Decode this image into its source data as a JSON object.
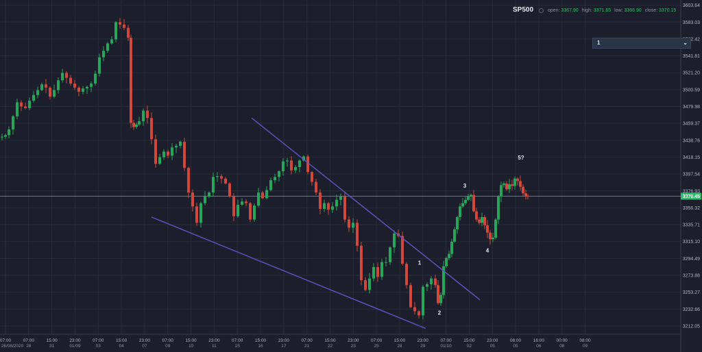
{
  "header": {
    "symbol": "SP500",
    "open_label": "open:",
    "open": "3367.90",
    "high_label": "high:",
    "high": "3371.65",
    "low_label": "low:",
    "low": "3366.90",
    "close_label": "close:",
    "close": "3370.15"
  },
  "selector": {
    "value": "1"
  },
  "colors": {
    "background": "#1c1f2b",
    "up": "#26a65b",
    "down": "#d2473c",
    "trendline": "#5b57c8",
    "price_line": "#26c06a"
  },
  "chart_data": {
    "type": "candlestick",
    "ylim": [
      3203,
      3606
    ],
    "y_ticks": [
      3603.64,
      3583.03,
      3562.42,
      3541.81,
      3521.2,
      3500.59,
      3479.98,
      3459.37,
      3438.76,
      3418.15,
      3397.54,
      3376.93,
      3356.32,
      3335.71,
      3315.1,
      3294.49,
      3273.88,
      3253.27,
      3232.66,
      3212.05
    ],
    "current_price": 3370.45,
    "current_price_label": "3370.45",
    "x_ticks": [
      {
        "t": "07:00",
        "d": "26/08/2020"
      },
      {
        "t": "07:00",
        "d": "28"
      },
      {
        "t": "15:00",
        "d": "31"
      },
      {
        "t": "23:00",
        "d": "01/09"
      },
      {
        "t": "07:00",
        "d": "03"
      },
      {
        "t": "15:00",
        "d": "04"
      },
      {
        "t": "23:00",
        "d": "07"
      },
      {
        "t": "07:00",
        "d": "09"
      },
      {
        "t": "15:00",
        "d": "10"
      },
      {
        "t": "23:00",
        "d": "11"
      },
      {
        "t": "07:00",
        "d": "15"
      },
      {
        "t": "15:00",
        "d": "16"
      },
      {
        "t": "23:00",
        "d": "17"
      },
      {
        "t": "07:00",
        "d": "21"
      },
      {
        "t": "15:00",
        "d": "22"
      },
      {
        "t": "23:00",
        "d": "23"
      },
      {
        "t": "07:00",
        "d": "25"
      },
      {
        "t": "15:00",
        "d": "28"
      },
      {
        "t": "23:00",
        "d": "29"
      },
      {
        "t": "07:00",
        "d": "01/10"
      },
      {
        "t": "15:00",
        "d": "02"
      },
      {
        "t": "23:00",
        "d": "05"
      },
      {
        "t": "08:00",
        "d": "05"
      },
      {
        "t": "16:00",
        "d": "06"
      },
      {
        "t": "00:00",
        "d": "08"
      },
      {
        "t": "08:00",
        "d": "09"
      }
    ],
    "close_path": [
      [
        0,
        3443
      ],
      [
        5,
        3445
      ],
      [
        10,
        3452
      ],
      [
        16,
        3468
      ],
      [
        22,
        3485
      ],
      [
        28,
        3480
      ],
      [
        34,
        3478
      ],
      [
        40,
        3487
      ],
      [
        46,
        3494
      ],
      [
        52,
        3500
      ],
      [
        58,
        3507
      ],
      [
        64,
        3503
      ],
      [
        70,
        3492
      ],
      [
        76,
        3500
      ],
      [
        82,
        3512
      ],
      [
        88,
        3521
      ],
      [
        94,
        3515
      ],
      [
        100,
        3508
      ],
      [
        106,
        3503
      ],
      [
        112,
        3498
      ],
      [
        118,
        3502
      ],
      [
        124,
        3504
      ],
      [
        130,
        3508
      ],
      [
        136,
        3520
      ],
      [
        142,
        3540
      ],
      [
        148,
        3548
      ],
      [
        154,
        3557
      ],
      [
        160,
        3562
      ],
      [
        166,
        3583
      ],
      [
        172,
        3580
      ],
      [
        178,
        3576
      ],
      [
        184,
        3564
      ],
      [
        188,
        3460
      ],
      [
        192,
        3455
      ],
      [
        196,
        3458
      ],
      [
        200,
        3462
      ],
      [
        206,
        3475
      ],
      [
        212,
        3466
      ],
      [
        218,
        3440
      ],
      [
        224,
        3410
      ],
      [
        230,
        3418
      ],
      [
        236,
        3425
      ],
      [
        242,
        3420
      ],
      [
        248,
        3430
      ],
      [
        254,
        3432
      ],
      [
        260,
        3437
      ],
      [
        266,
        3405
      ],
      [
        272,
        3375
      ],
      [
        278,
        3358
      ],
      [
        284,
        3338
      ],
      [
        290,
        3362
      ],
      [
        296,
        3370
      ],
      [
        302,
        3375
      ],
      [
        308,
        3394
      ],
      [
        314,
        3395
      ],
      [
        320,
        3392
      ],
      [
        326,
        3386
      ],
      [
        332,
        3370
      ],
      [
        338,
        3346
      ],
      [
        344,
        3360
      ],
      [
        350,
        3364
      ],
      [
        356,
        3362
      ],
      [
        362,
        3342
      ],
      [
        368,
        3359
      ],
      [
        374,
        3375
      ],
      [
        380,
        3368
      ],
      [
        386,
        3378
      ],
      [
        392,
        3390
      ],
      [
        398,
        3394
      ],
      [
        404,
        3401
      ],
      [
        410,
        3413
      ],
      [
        416,
        3414
      ],
      [
        422,
        3402
      ],
      [
        428,
        3406
      ],
      [
        434,
        3414
      ],
      [
        440,
        3419
      ],
      [
        446,
        3400
      ],
      [
        452,
        3388
      ],
      [
        458,
        3375
      ],
      [
        464,
        3355
      ],
      [
        470,
        3362
      ],
      [
        476,
        3354
      ],
      [
        482,
        3358
      ],
      [
        488,
        3366
      ],
      [
        494,
        3370
      ],
      [
        500,
        3342
      ],
      [
        506,
        3332
      ],
      [
        512,
        3338
      ],
      [
        518,
        3310
      ],
      [
        524,
        3268
      ],
      [
        530,
        3256
      ],
      [
        536,
        3270
      ],
      [
        542,
        3284
      ],
      [
        548,
        3272
      ],
      [
        554,
        3290
      ],
      [
        560,
        3290
      ],
      [
        566,
        3308
      ],
      [
        572,
        3325
      ],
      [
        578,
        3322
      ],
      [
        584,
        3288
      ],
      [
        590,
        3262
      ],
      [
        596,
        3235
      ],
      [
        602,
        3230
      ],
      [
        608,
        3225
      ],
      [
        614,
        3260
      ],
      [
        620,
        3263
      ],
      [
        626,
        3270
      ],
      [
        632,
        3262
      ],
      [
        636,
        3240
      ],
      [
        640,
        3250
      ],
      [
        644,
        3285
      ],
      [
        648,
        3295
      ],
      [
        652,
        3300
      ],
      [
        656,
        3315
      ],
      [
        660,
        3330
      ],
      [
        664,
        3345
      ],
      [
        668,
        3358
      ],
      [
        672,
        3362
      ],
      [
        676,
        3366
      ],
      [
        680,
        3370
      ],
      [
        684,
        3372
      ],
      [
        688,
        3352
      ],
      [
        692,
        3342
      ],
      [
        696,
        3338
      ],
      [
        700,
        3345
      ],
      [
        704,
        3335
      ],
      [
        708,
        3326
      ],
      [
        712,
        3318
      ],
      [
        716,
        3320
      ],
      [
        720,
        3342
      ],
      [
        724,
        3370
      ],
      [
        728,
        3384
      ],
      [
        732,
        3386
      ],
      [
        736,
        3379
      ],
      [
        740,
        3385
      ],
      [
        744,
        3383
      ],
      [
        748,
        3392
      ],
      [
        752,
        3389
      ],
      [
        756,
        3382
      ],
      [
        760,
        3374
      ],
      [
        764,
        3371
      ],
      [
        767,
        3370
      ]
    ],
    "annotations": [
      {
        "label": "1",
        "x": 612,
        "y": 3287
      },
      {
        "label": "2",
        "x": 641,
        "y": 3226
      },
      {
        "label": "3",
        "x": 678,
        "y": 3381
      },
      {
        "label": "4",
        "x": 711,
        "y": 3302
      },
      {
        "label": "5?",
        "x": 760,
        "y": 3415
      }
    ],
    "trendlines": [
      {
        "x1": 367,
        "y1": 3466,
        "x2": 700,
        "y2": 3244
      },
      {
        "x1": 221,
        "y1": 3345,
        "x2": 621,
        "y2": 3209
      }
    ]
  }
}
